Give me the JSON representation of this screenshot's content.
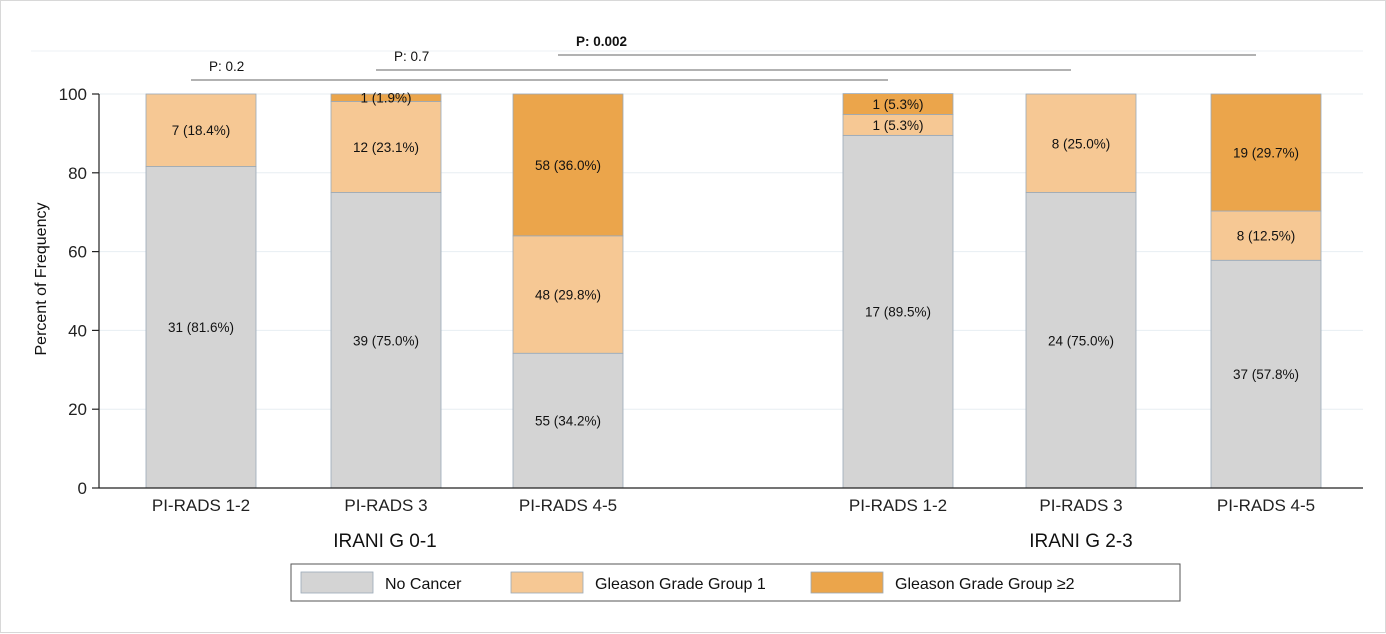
{
  "chart_data": {
    "type": "bar",
    "stacked": true,
    "ylabel": "Percent of Frequency",
    "ylim": [
      0,
      100
    ],
    "yticks": [
      0,
      20,
      40,
      60,
      80,
      100
    ],
    "grid": true,
    "legend_position": "bottom",
    "groups": [
      {
        "label": "IRANI G 0-1",
        "categories": [
          "PI-RADS 1-2",
          "PI-RADS 3",
          "PI-RADS 4-5"
        ]
      },
      {
        "label": "IRANI G 2-3",
        "categories": [
          "PI-RADS 1-2",
          "PI-RADS 3",
          "PI-RADS 4-5"
        ]
      }
    ],
    "series": [
      {
        "name": "No Cancer",
        "color": "#d4d4d4",
        "values": [
          81.6,
          75.0,
          34.2,
          89.5,
          75.0,
          57.8
        ],
        "labels": [
          "31 (81.6%)",
          "39 (75.0%)",
          "55 (34.2%)",
          "17 (89.5%)",
          "24 (75.0%)",
          "37 (57.8%)"
        ]
      },
      {
        "name": "Gleason Grade Group 1",
        "color": "#f6c894",
        "values": [
          18.4,
          23.1,
          29.8,
          5.3,
          25.0,
          12.5
        ],
        "labels": [
          "7 (18.4%)",
          "12 (23.1%)",
          "48 (29.8%)",
          "1 (5.3%)",
          "8 (25.0%)",
          "8 (12.5%)"
        ]
      },
      {
        "name": "Gleason Grade Group ≥2",
        "color": "#eba54b",
        "values": [
          0,
          1.9,
          36.0,
          5.3,
          0,
          29.7
        ],
        "labels": [
          "",
          "1 (1.9%)",
          "58 (36.0%)",
          "1 (5.3%)",
          "",
          "19 (29.7%)"
        ]
      }
    ],
    "annotations": [
      {
        "text": "P: 0.2",
        "from_bar": 0,
        "to_bar": 3,
        "bold": false
      },
      {
        "text": "P: 0.7",
        "from_bar": 1,
        "to_bar": 4,
        "bold": false
      },
      {
        "text": "P: 0.002",
        "from_bar": 2,
        "to_bar": 5,
        "bold": true
      }
    ]
  }
}
